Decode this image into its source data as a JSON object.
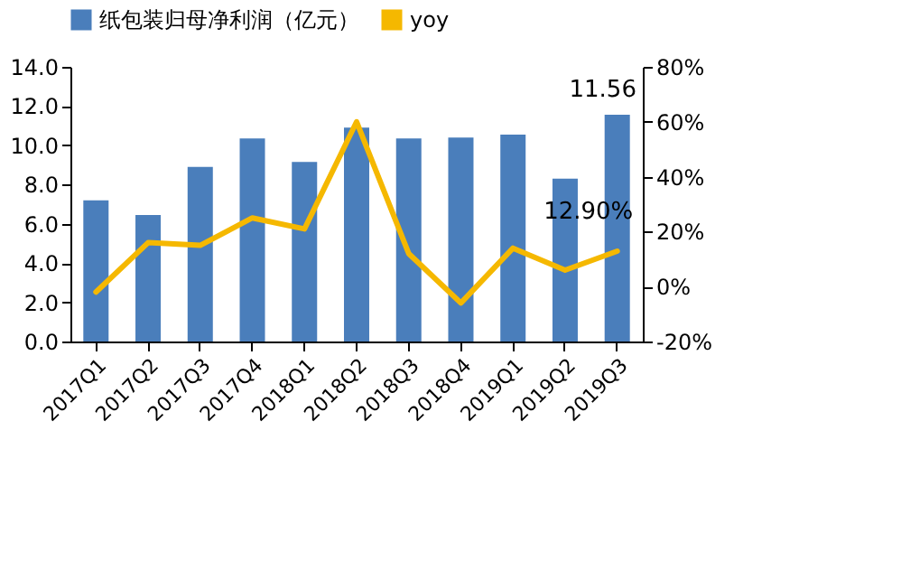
{
  "chart_data": {
    "type": "bar",
    "categories": [
      "2017Q1",
      "2017Q2",
      "2017Q3",
      "2017Q4",
      "2018Q1",
      "2018Q2",
      "2018Q3",
      "2018Q4",
      "2019Q1",
      "2019Q2",
      "2019Q3"
    ],
    "series": [
      {
        "name": "纸包装归母净利润（亿元）",
        "color": "#4a7ebb",
        "values": [
          7.2,
          6.45,
          8.9,
          10.35,
          9.15,
          10.9,
          10.35,
          10.4,
          10.55,
          8.3,
          11.56
        ],
        "value_labels": [
          null,
          null,
          null,
          null,
          null,
          null,
          null,
          null,
          null,
          null,
          "11.56"
        ]
      },
      {
        "name": "yoy",
        "type": "line",
        "axis": "y2",
        "color": "#f5b800",
        "values": [
          -2,
          16,
          15,
          25,
          21,
          60,
          12,
          -6,
          14,
          6,
          12.9
        ],
        "value_labels": [
          null,
          null,
          null,
          null,
          null,
          null,
          null,
          null,
          null,
          null,
          "12.90%"
        ]
      }
    ],
    "ylim": [
      0,
      14
    ],
    "yticks": [
      {
        "value": 0,
        "label": "0.0"
      },
      {
        "value": 2,
        "label": "2.0"
      },
      {
        "value": 4,
        "label": "4.0"
      },
      {
        "value": 6,
        "label": "6.0"
      },
      {
        "value": 8,
        "label": "8.0"
      },
      {
        "value": 10,
        "label": "10.0"
      },
      {
        "value": 12,
        "label": "12.0"
      },
      {
        "value": 14,
        "label": "14.0"
      }
    ],
    "y2lim": [
      -20,
      80
    ],
    "y2ticks": [
      {
        "value": -20,
        "label": "-20%"
      },
      {
        "value": 0,
        "label": "0%"
      },
      {
        "value": 20,
        "label": "20%"
      },
      {
        "value": 40,
        "label": "40%"
      },
      {
        "value": 60,
        "label": "60%"
      },
      {
        "value": 80,
        "label": "80%"
      }
    ],
    "legend": "top",
    "grid": false
  }
}
